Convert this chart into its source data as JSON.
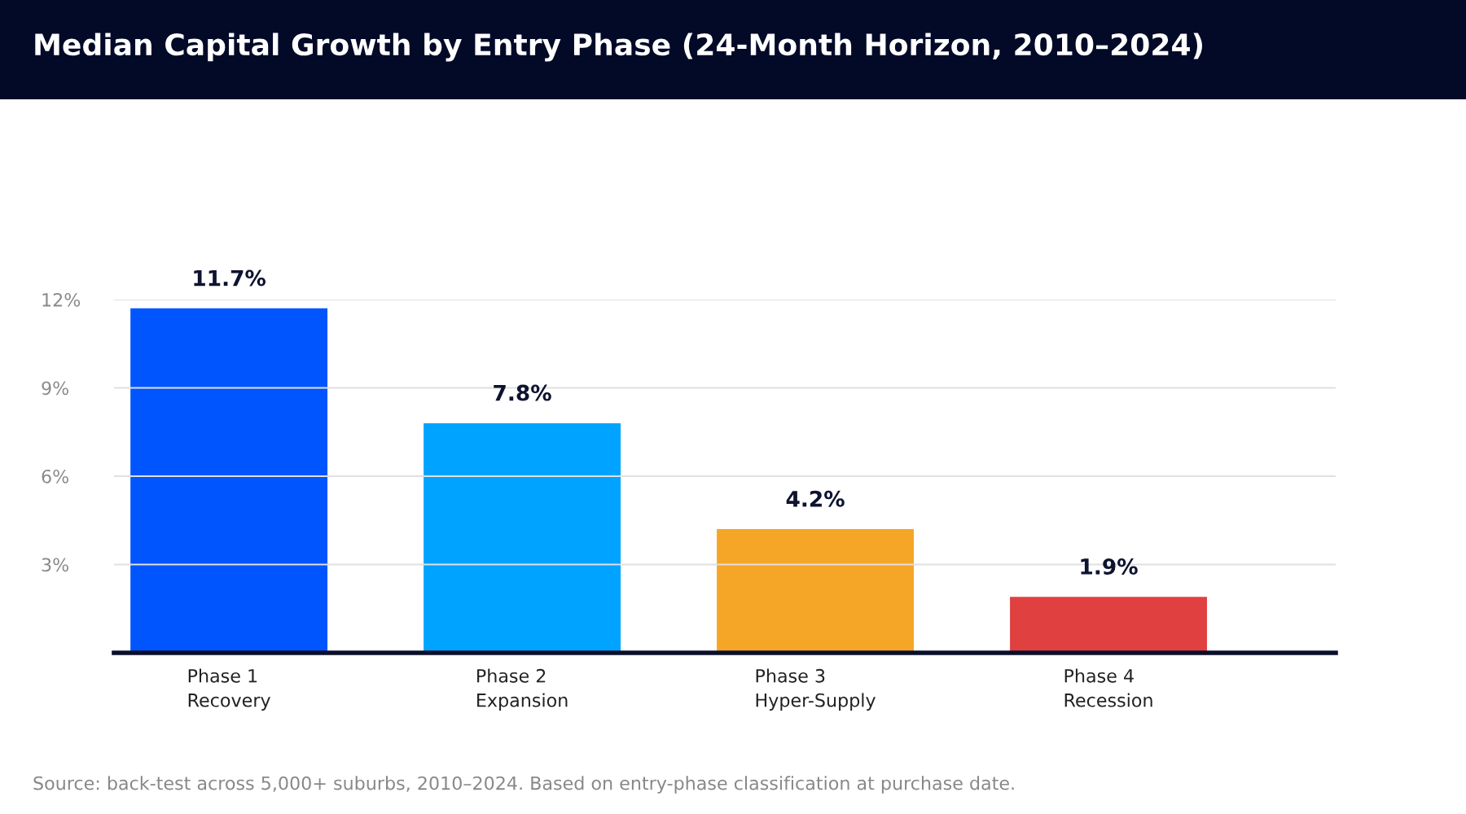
{
  "chart_data": {
    "type": "bar",
    "title": "Median Capital Growth by Entry Phase (24-Month Horizon, 2010–2024)",
    "categories": [
      "Phase 1\nRecovery",
      "Phase 2\nExpansion",
      "Phase 3\nHyper-Supply",
      "Phase 4\nRecession"
    ],
    "values": [
      11.7,
      7.8,
      4.2,
      1.9
    ],
    "colors": [
      "#0055ff",
      "#00a3ff",
      "#f5a626",
      "#e04040"
    ],
    "value_labels": [
      "11.7%",
      "7.8%",
      "4.2%",
      "1.9%"
    ],
    "ylim": [
      0,
      12
    ],
    "yticks": [
      {
        "value": 3,
        "label": "3%"
      },
      {
        "value": 6,
        "label": "6%"
      },
      {
        "value": 9,
        "label": "9%"
      },
      {
        "value": 12,
        "label": "12%"
      }
    ],
    "grid": "y",
    "annotations": [
      "Source: back-test across 5,000+ suburbs, 2010–2024. Based on entry-phase classification at purchase date."
    ]
  }
}
